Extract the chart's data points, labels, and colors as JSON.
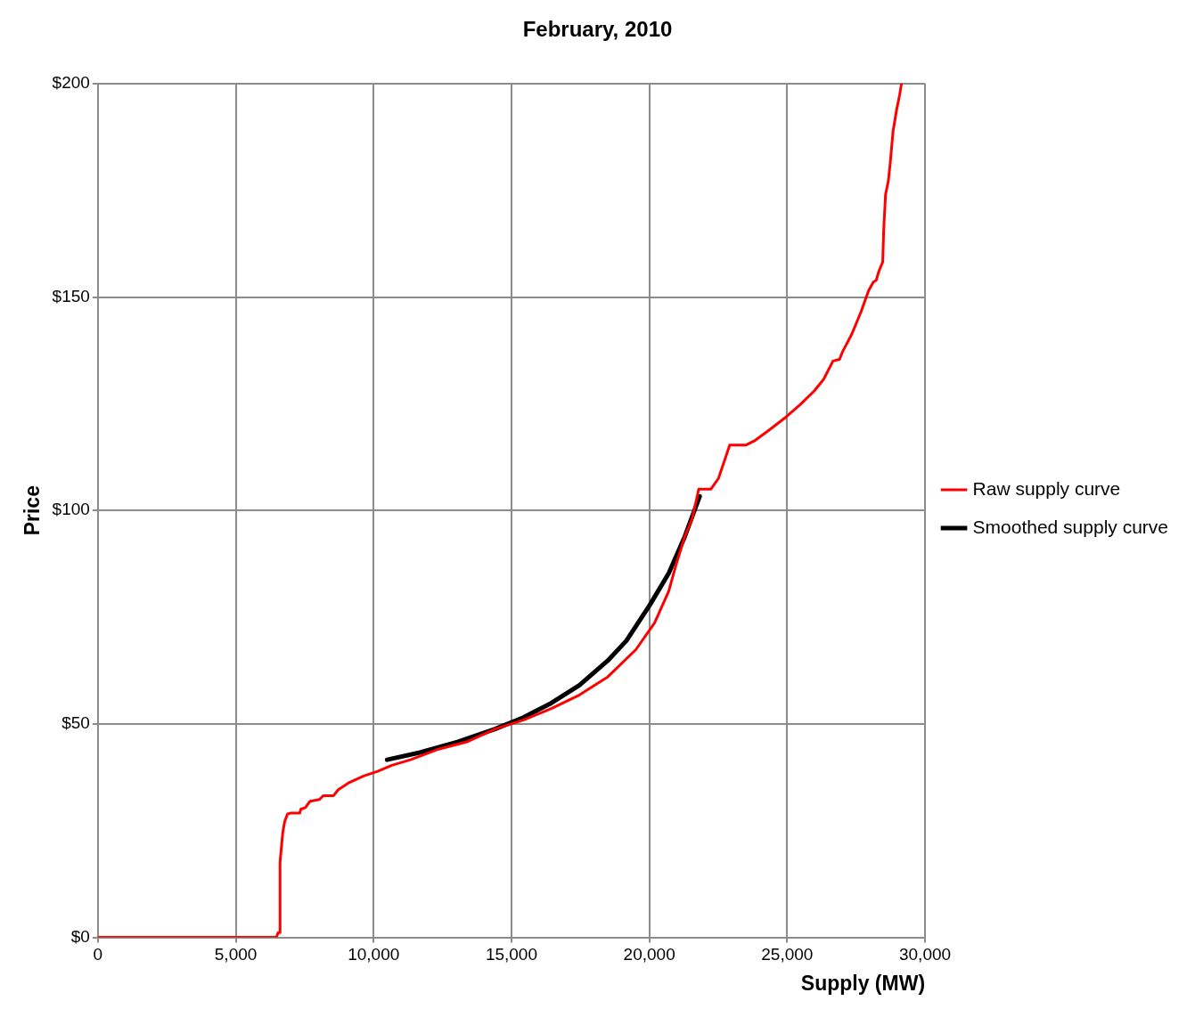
{
  "chart_data": {
    "type": "line",
    "title": "February, 2010",
    "xlabel": "Supply (MW)",
    "ylabel": "Price",
    "xlim": [
      0,
      30000
    ],
    "xticks": [
      0,
      {
        "value": 5000,
        "label": "5,000"
      },
      {
        "value": 10000,
        "label": "10,000"
      },
      {
        "value": 15000,
        "label": "15,000"
      },
      {
        "value": 20000,
        "label": "20,000"
      },
      {
        "value": 25000,
        "label": "25,000"
      },
      {
        "value": 30000,
        "label": "30,000"
      }
    ],
    "ylim": [
      0,
      200
    ],
    "yticks": [
      {
        "value": 0,
        "label": "$0"
      },
      {
        "value": 50,
        "label": "$50"
      },
      {
        "value": 100,
        "label": "$100"
      },
      {
        "value": 150,
        "label": "$150"
      },
      {
        "value": 200,
        "label": "$200"
      }
    ],
    "grid": true,
    "legend": "right",
    "marker": "none",
    "series": [
      {
        "name": "Raw supply curve",
        "color": "#ff0000",
        "x": [
          0,
          6470,
          6538,
          6606,
          6606,
          6708,
          6776,
          6878,
          6980,
          7321,
          7355,
          7525,
          7695,
          8036,
          8172,
          8547,
          8717,
          9125,
          9636,
          10147,
          10658,
          11339,
          12360,
          13382,
          14403,
          15425,
          16446,
          17468,
          18489,
          19511,
          20192,
          20703,
          20975,
          21281,
          21554,
          21792,
          22235,
          22507,
          22916,
          23495,
          23836,
          24279,
          24960,
          25470,
          25981,
          26321,
          26661,
          26900,
          27002,
          27343,
          27683,
          27853,
          27955,
          28125,
          28228,
          28330,
          28466,
          28500,
          28568,
          28670,
          28738,
          28840,
          28976,
          29078,
          29146
        ],
        "values": [
          0,
          0,
          1.1,
          1.1,
          17.7,
          24.7,
          27.2,
          28.9,
          29.1,
          29.1,
          30.0,
          30.4,
          31.9,
          32.3,
          33.2,
          33.2,
          34.6,
          36.3,
          37.8,
          38.9,
          40.3,
          41.6,
          44.1,
          45.8,
          48.8,
          50.9,
          53.6,
          56.8,
          61.0,
          67.4,
          73.7,
          81.1,
          87.4,
          93.8,
          98.0,
          105.0,
          105.0,
          107.5,
          115.3,
          115.3,
          116.4,
          118.5,
          121.9,
          124.8,
          128.0,
          130.7,
          135.0,
          135.4,
          137.1,
          141.3,
          146.6,
          149.7,
          151.5,
          153.5,
          153.9,
          156.1,
          158.2,
          165.6,
          174.0,
          177.2,
          181.4,
          188.8,
          194.1,
          197.3,
          200.0
        ]
      },
      {
        "name": "Smoothed supply curve",
        "color": "#000000",
        "x": [
          10488,
          11679,
          13041,
          14403,
          15425,
          16446,
          17468,
          18489,
          19170,
          20022,
          20703,
          21281,
          21826
        ],
        "values": [
          41.6,
          43.3,
          45.8,
          48.8,
          51.5,
          54.9,
          59.1,
          64.8,
          69.5,
          77.9,
          85.3,
          93.8,
          103.3
        ]
      }
    ]
  }
}
